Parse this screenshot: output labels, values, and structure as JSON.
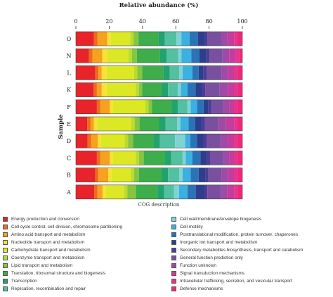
{
  "chart_data": {
    "type": "bar",
    "orientation": "horizontal",
    "stacked": true,
    "title": "Relative abundance (%)",
    "xlabel": "COG description",
    "ylabel": "Sample",
    "xlim": [
      0,
      100
    ],
    "xticks": [
      0,
      20,
      40,
      60,
      80,
      100
    ],
    "categories": [
      "O",
      "N",
      "L",
      "K",
      "F",
      "E",
      "D",
      "C",
      "B",
      "A"
    ],
    "series": [
      {
        "name": "Energy production and conversion",
        "color": "#e8232a",
        "values": [
          11,
          8,
          12,
          11,
          13,
          7,
          7,
          13,
          12,
          11
        ]
      },
      {
        "name": "Cell cycle control, cell division, chromosome partitioning",
        "color": "#ee6a1c",
        "values": [
          2,
          2,
          2,
          2,
          2,
          2,
          2,
          2,
          2,
          2
        ]
      },
      {
        "name": "Amino acid transport and metabolism",
        "color": "#f6a21e",
        "values": [
          6,
          6,
          2,
          3,
          6,
          2,
          4,
          6,
          6,
          3
        ]
      },
      {
        "name": "Nucleotide transport and metabolism",
        "color": "#fbe036",
        "values": [
          2,
          3,
          3,
          3,
          2,
          2,
          2,
          2,
          2,
          2
        ]
      },
      {
        "name": "Carbohydrate transport and metabolism",
        "color": "#dde825",
        "values": [
          12,
          13,
          17,
          18,
          20,
          21,
          14,
          14,
          12,
          11
        ]
      },
      {
        "name": "Coenzyme transport and metabolism",
        "color": "#b8dc2e",
        "values": [
          2,
          2,
          2,
          2,
          2,
          2,
          2,
          2,
          2,
          2
        ]
      },
      {
        "name": "Lipid transport and metabolism",
        "color": "#86c540",
        "values": [
          3,
          3,
          3,
          2,
          2,
          3,
          3,
          3,
          3,
          5
        ]
      },
      {
        "name": "Translation, ribosomal structure and biogenesis",
        "color": "#3dae49",
        "values": [
          12,
          14,
          13,
          12,
          12,
          12,
          12,
          13,
          14,
          13
        ]
      },
      {
        "name": "Transcription",
        "color": "#21a36d",
        "values": [
          4,
          4,
          4,
          4,
          4,
          4,
          4,
          4,
          4,
          4
        ]
      },
      {
        "name": "Replication, recombination and repair",
        "color": "#52c0a1",
        "values": [
          7,
          7,
          6,
          6,
          6,
          7,
          9,
          7,
          7,
          6
        ]
      },
      {
        "name": "Cell wall/membrane/envelope biogenesis",
        "color": "#7fd3d3",
        "values": [
          3,
          2,
          2,
          2,
          2,
          2,
          6,
          2,
          2,
          3
        ]
      },
      {
        "name": "Cell motility",
        "color": "#3ab1e1",
        "values": [
          5,
          6,
          6,
          4,
          4,
          5,
          3,
          4,
          5,
          5
        ]
      },
      {
        "name": "Posttranslational modification, protein turnover, chaperones",
        "color": "#2b73b8",
        "values": [
          5,
          5,
          4,
          5,
          4,
          4,
          4,
          5,
          5,
          5
        ]
      },
      {
        "name": "Inorganic ion transport and metabolism",
        "color": "#2c3e8c",
        "values": [
          4,
          4,
          3,
          4,
          3,
          4,
          4,
          4,
          4,
          5
        ]
      },
      {
        "name": "Secondary metabolites biosynthesis, transport and catabolism",
        "color": "#4a3d97",
        "values": [
          2,
          2,
          2,
          2,
          2,
          2,
          2,
          2,
          2,
          2
        ]
      },
      {
        "name": "General function prediction only",
        "color": "#7950a0",
        "values": [
          8,
          8,
          9,
          9,
          7,
          8,
          8,
          8,
          8,
          8
        ]
      },
      {
        "name": "Function unknown",
        "color": "#9e4aa6",
        "values": [
          4,
          4,
          4,
          5,
          4,
          5,
          4,
          4,
          4,
          4
        ]
      },
      {
        "name": "Signal transduction mechanisms",
        "color": "#c63b9e",
        "values": [
          4,
          4,
          4,
          4,
          3,
          5,
          4,
          3,
          4,
          4
        ]
      },
      {
        "name": "Intracellular trafficking, secretion, and vesicular transport",
        "color": "#e6358e",
        "values": [
          2,
          2,
          2,
          2,
          2,
          2,
          2,
          2,
          2,
          2
        ]
      },
      {
        "name": "Defense mechanisms",
        "color": "#f0277a",
        "values": [
          3,
          2,
          3,
          3,
          3,
          3,
          3,
          3,
          3,
          3
        ]
      }
    ]
  }
}
